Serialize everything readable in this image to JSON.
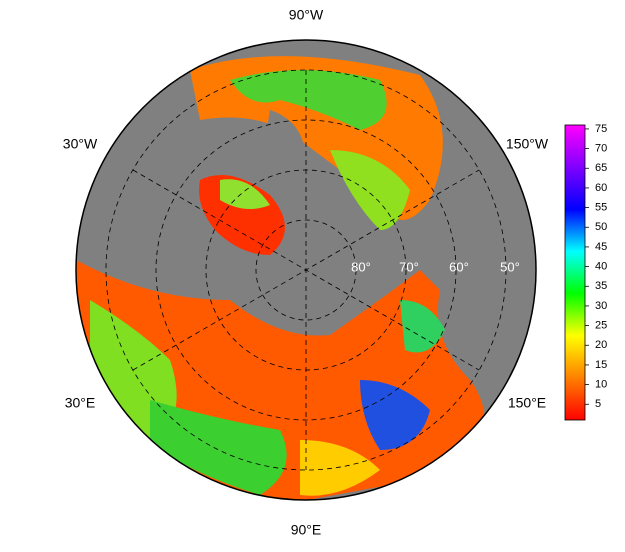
{
  "map": {
    "longitude_labels": [
      "90°W",
      "30°W",
      "150°W",
      "30°E",
      "150°E",
      "90°E"
    ],
    "latitude_labels": [
      "80°",
      "70°",
      "60°",
      "50°"
    ]
  },
  "colorbar": {
    "clim": [
      1,
      76
    ],
    "ticks": [
      5,
      10,
      15,
      20,
      25,
      30,
      35,
      40,
      45,
      50,
      55,
      60,
      65,
      70,
      75
    ],
    "colors": [
      "#ff0000",
      "#ff8000",
      "#ffff00",
      "#00ff00",
      "#00ffff",
      "#0000ff",
      "#8000ff",
      "#ff00ff"
    ]
  }
}
